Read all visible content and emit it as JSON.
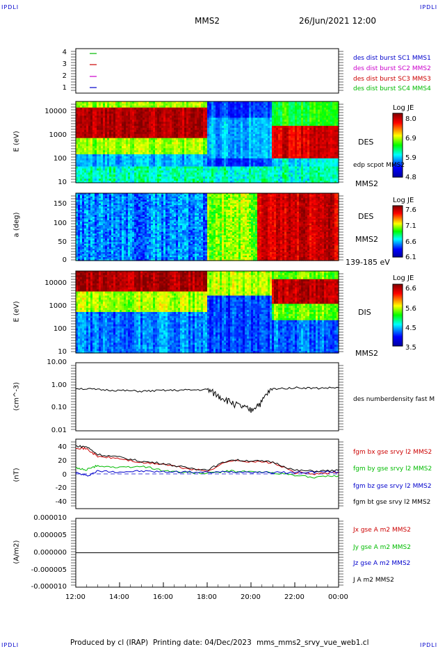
{
  "header": {
    "corner_label": "IPDLI",
    "title": "MMS2",
    "datetime": "26/Jun/2021 12:00"
  },
  "footer": {
    "produced_by": "Produced by cl (IRAP)",
    "printing_date": "Printing date: 04/Dec/2023",
    "filename": "mms_mms2_srvy_vue_web1.cl"
  },
  "time_axis": {
    "ticks": [
      "12:00",
      "14:00",
      "16:00",
      "18:00",
      "20:00",
      "22:00",
      "00:00"
    ],
    "range_hours": [
      12,
      24
    ]
  },
  "colors": {
    "blue": "#0000cc",
    "red": "#cc0000",
    "magenta": "#cc00cc",
    "green": "#00bb00",
    "black": "#000000"
  },
  "panels": {
    "spacecraft": {
      "yticks": [
        "4",
        "3",
        "2",
        "1"
      ],
      "legend": [
        {
          "label": "des dist burst SC1 MMS1",
          "color": "#0000cc"
        },
        {
          "label": "des dist burst SC2 MMS2",
          "color": "#cc00cc"
        },
        {
          "label": "des dist burst SC3 MMS3",
          "color": "#cc0000"
        },
        {
          "label": "des dist burst SC4 MMS4",
          "color": "#00bb00"
        }
      ]
    },
    "des_energy": {
      "ylabel": "E (eV)",
      "yticks": [
        "10000",
        "1000",
        "100",
        "10"
      ],
      "side_label": "DES",
      "overlay_label": "edp scpot MMS2",
      "bottom_label": "MMS2",
      "colorbar": {
        "title": "Log JE",
        "ticks": [
          "8.0",
          "6.9",
          "5.9",
          "4.8"
        ]
      }
    },
    "des_pitch": {
      "ylabel": "a (deg)",
      "yticks": [
        "150",
        "100",
        "50",
        "0"
      ],
      "side_label": "DES",
      "side_label2": "MMS2",
      "bottom_label": "139-185 eV",
      "colorbar": {
        "title": "Log JE",
        "ticks": [
          "7.6",
          "7.1",
          "6.6",
          "6.1"
        ]
      }
    },
    "dis_energy": {
      "ylabel": "E (eV)",
      "yticks": [
        "10000",
        "1000",
        "100",
        "10"
      ],
      "side_label": "DIS",
      "bottom_label": "MMS2",
      "colorbar": {
        "title": "Log JE",
        "ticks": [
          "6.6",
          "5.6",
          "4.5",
          "3.5"
        ]
      }
    },
    "density": {
      "ylabel": "(cm^-3)",
      "yticks": [
        "10.00",
        "1.00",
        "0.10",
        "0.01"
      ],
      "legend": "des numberdensity fast M"
    },
    "bfield": {
      "ylabel": "(nT)",
      "yticks": [
        "40",
        "20",
        "0",
        "-20",
        "-40"
      ],
      "legend": [
        {
          "label": "fgm bx gse srvy l2 MMS2",
          "color": "#cc0000"
        },
        {
          "label": "fgm by gse srvy l2 MMS2",
          "color": "#00bb00"
        },
        {
          "label": "fgm bz gse srvy l2 MMS2",
          "color": "#0000cc"
        },
        {
          "label": "fgm bt gse srvy l2 MMS2",
          "color": "#000000"
        }
      ]
    },
    "current": {
      "ylabel": "(A/m2)",
      "yticks": [
        "0.000010",
        "0.000005",
        "0.000000",
        "-0.000005",
        "-0.000010"
      ],
      "legend": [
        {
          "label": "Jx gse A m2 MMS2",
          "color": "#cc0000"
        },
        {
          "label": "Jy gse A m2 MMS2",
          "color": "#00bb00"
        },
        {
          "label": "Jz gse A m2 MMS2",
          "color": "#0000cc"
        },
        {
          "label": "J A m2 MMS2",
          "color": "#000000"
        }
      ]
    }
  },
  "chart_data": [
    {
      "type": "line",
      "title": "des numberdensity fast M",
      "ylabel": "(cm^-3)",
      "yscale": "log",
      "ylim": [
        0.01,
        10
      ],
      "x": [
        12,
        13,
        14,
        15,
        16,
        17,
        18,
        18.5,
        19,
        19.5,
        20,
        20.5,
        21,
        22,
        23,
        24
      ],
      "values": [
        0.75,
        0.65,
        0.6,
        0.55,
        0.6,
        0.62,
        0.65,
        0.35,
        0.2,
        0.12,
        0.08,
        0.18,
        0.7,
        0.8,
        0.75,
        0.8
      ]
    },
    {
      "type": "line",
      "ylabel": "(nT)",
      "ylim": [
        -50,
        50
      ],
      "x": [
        12,
        12.5,
        13,
        14,
        15,
        16,
        17,
        18,
        19,
        20,
        21,
        22,
        23,
        24
      ],
      "series": [
        {
          "name": "fgm bx gse srvy l2 MMS2",
          "values": [
            38,
            36,
            25,
            22,
            16,
            14,
            8,
            4,
            19,
            18,
            16,
            2,
            0,
            2
          ]
        },
        {
          "name": "fgm by gse srvy l2 MMS2",
          "values": [
            8,
            6,
            12,
            9,
            11,
            5,
            2,
            1,
            4,
            3,
            2,
            -2,
            -5,
            -3
          ]
        },
        {
          "name": "fgm bz gse srvy l2 MMS2",
          "values": [
            2,
            -3,
            4,
            3,
            4,
            3,
            3,
            2,
            3,
            3,
            2,
            2,
            3,
            3
          ]
        },
        {
          "name": "fgm bt gse srvy l2 MMS2",
          "values": [
            40,
            39,
            28,
            24,
            18,
            15,
            9,
            6,
            20,
            19,
            17,
            5,
            4,
            5
          ]
        }
      ]
    },
    {
      "type": "line",
      "ylabel": "(A/m2)",
      "ylim": [
        -1e-05,
        1e-05
      ],
      "x": [
        12,
        24
      ],
      "series": [
        {
          "name": "J A m2 MMS2",
          "values": [
            0,
            0
          ]
        }
      ]
    }
  ]
}
